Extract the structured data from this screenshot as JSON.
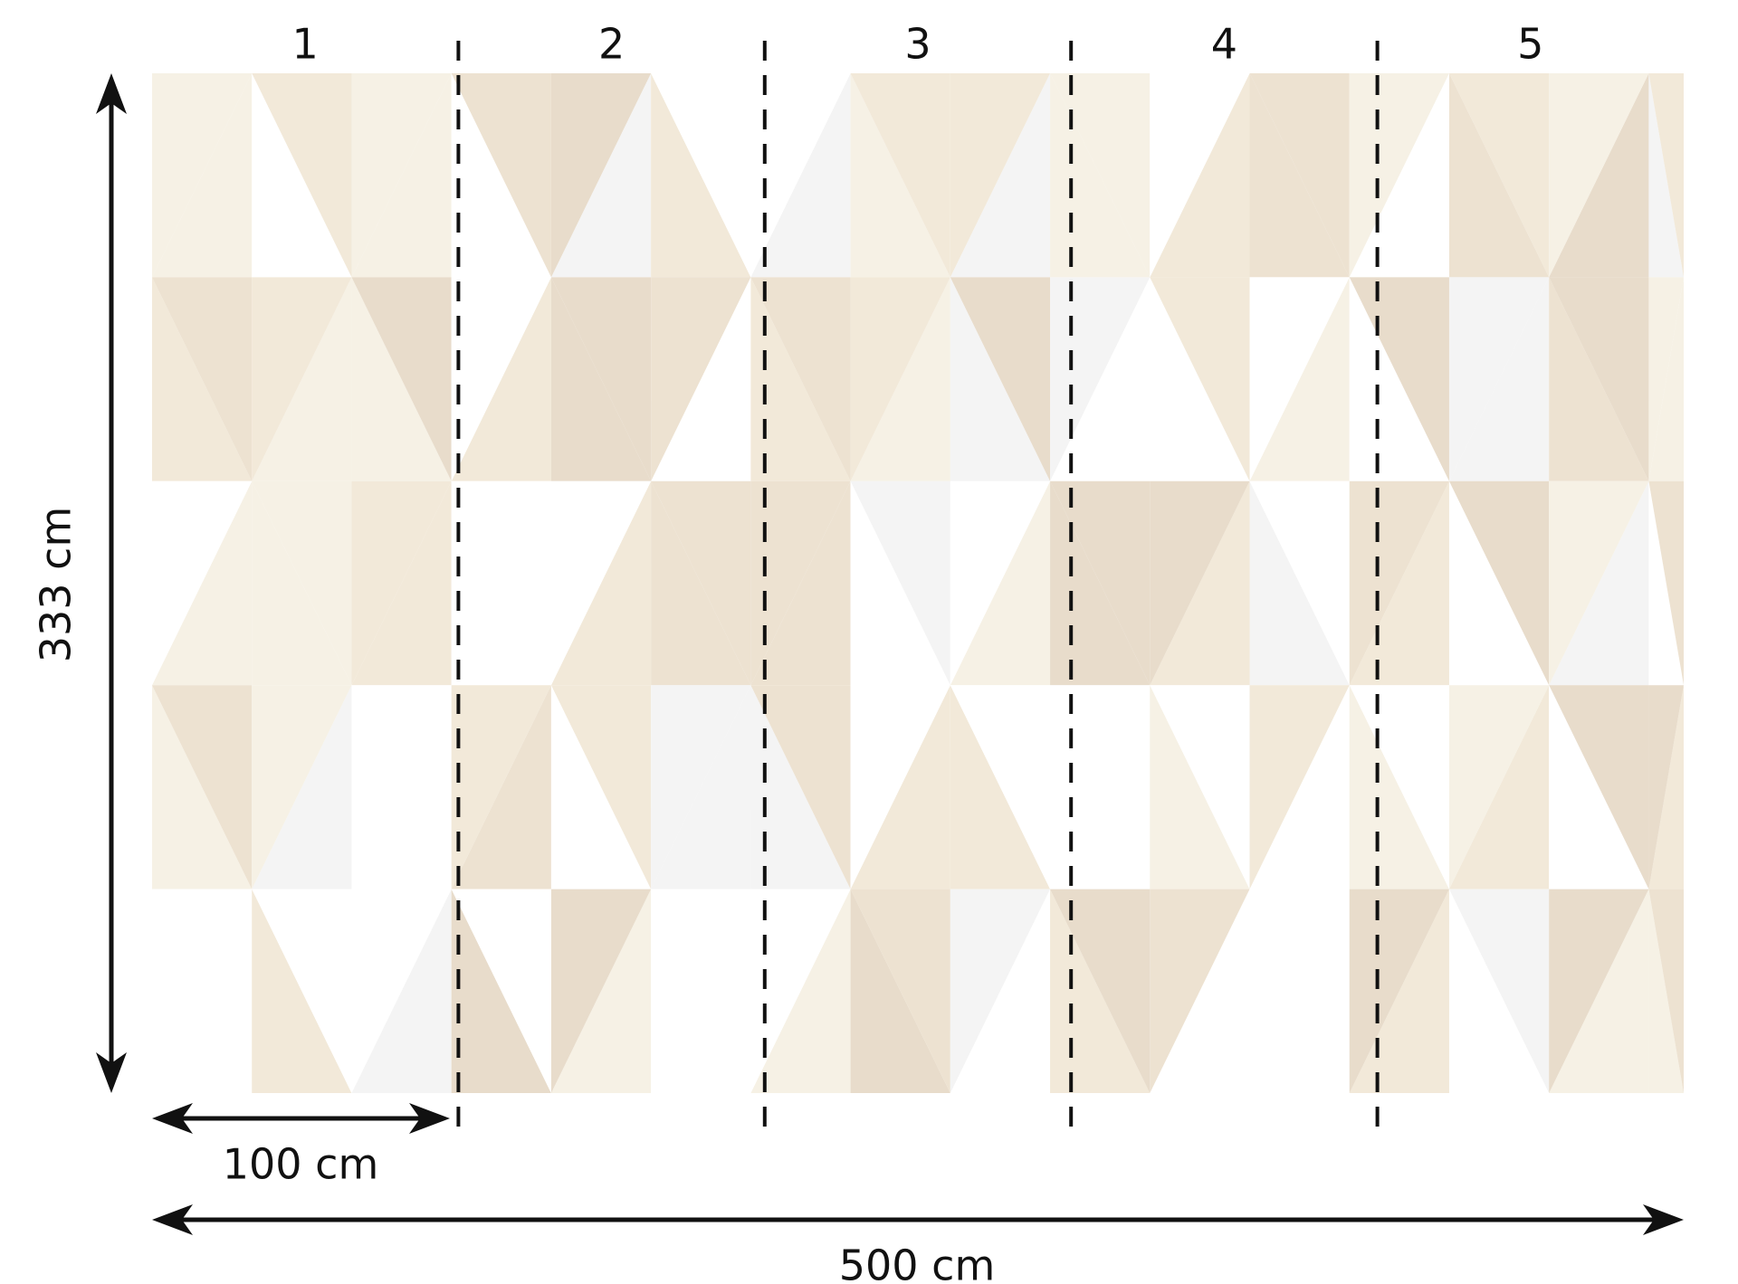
{
  "panels": [
    "1",
    "2",
    "3",
    "4",
    "5"
  ],
  "height_label": "333 cm",
  "panel_width_label": "100 cm",
  "total_width_label": "500 cm"
}
